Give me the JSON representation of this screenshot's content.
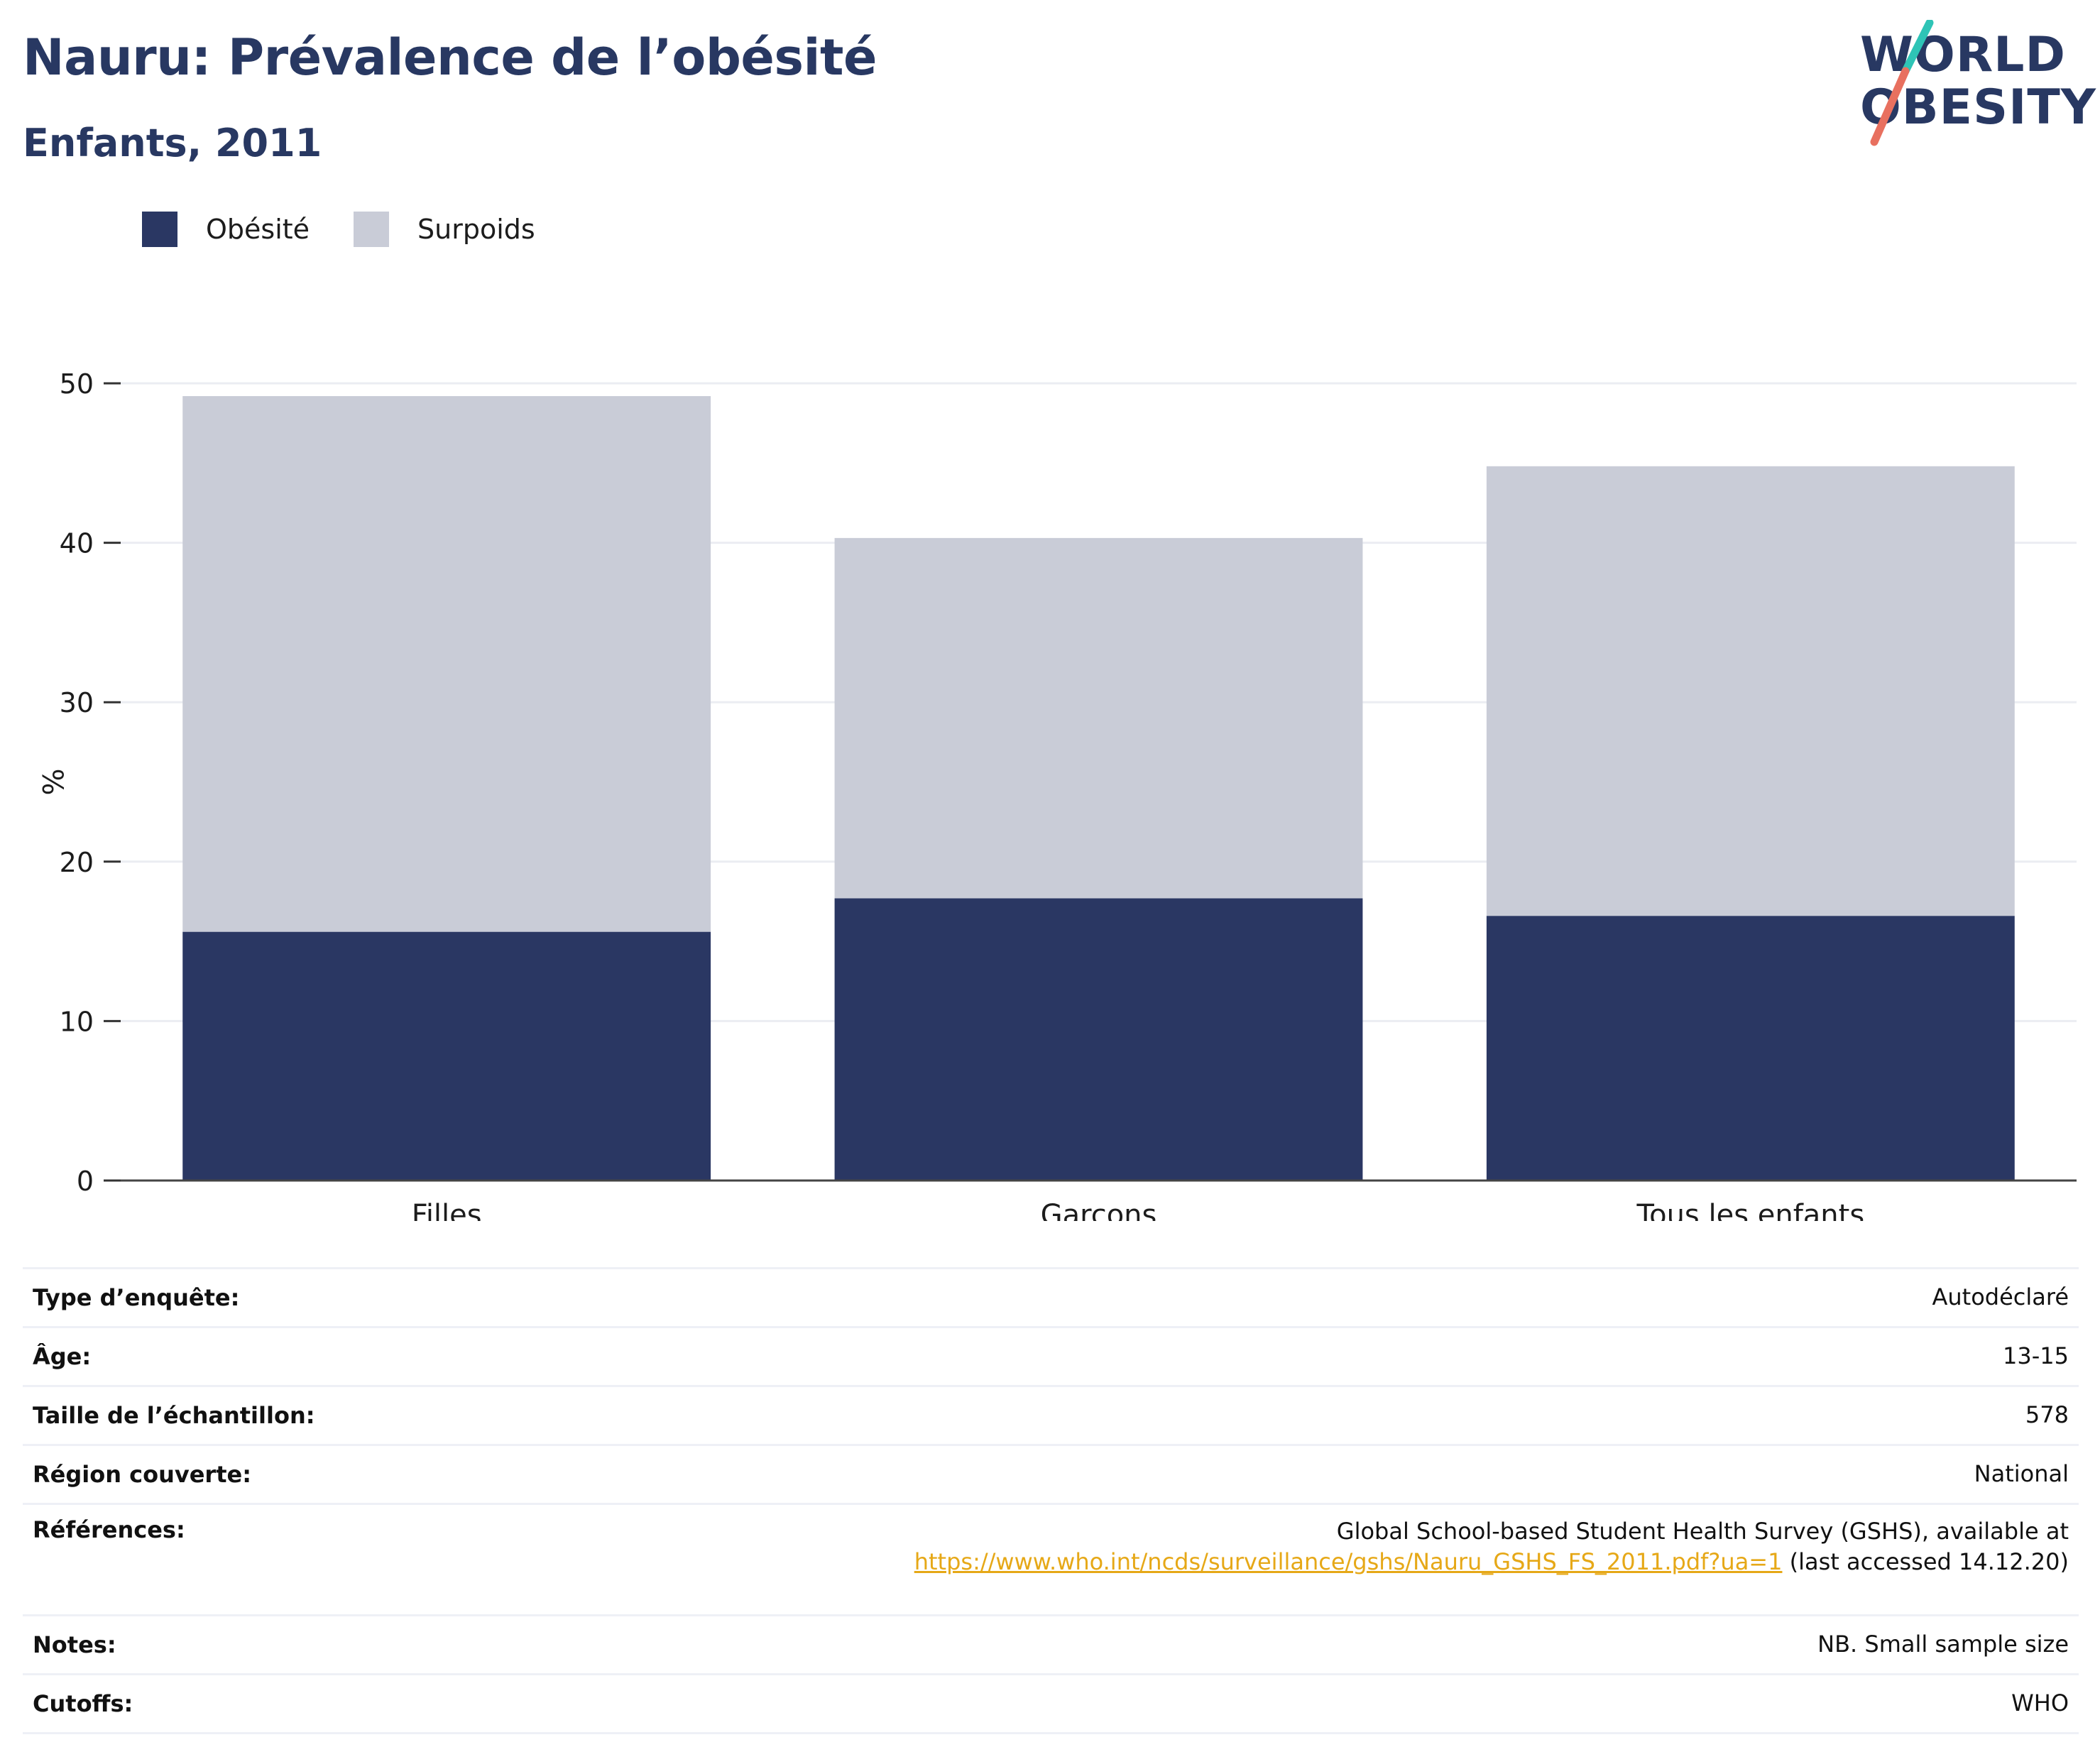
{
  "header": {
    "title": "Nauru: Prévalence de l’obésité",
    "subtitle": "Enfants, 2011"
  },
  "logo": {
    "line1": "WORLD",
    "line2": "OBESITY",
    "colors": {
      "text": "#283862",
      "slash_top": "#2ec4b6",
      "slash_bottom": "#e8705f"
    }
  },
  "chart_data": {
    "type": "bar",
    "stacked": true,
    "categories": [
      "Filles",
      "Garçons",
      "Tous les enfants"
    ],
    "series": [
      {
        "name": "Obésité",
        "color": "#2a3763",
        "values": [
          15.6,
          17.7,
          16.6
        ]
      },
      {
        "name": "Surpoids",
        "color": "#c9ccd7",
        "values": [
          33.6,
          22.6,
          28.2
        ]
      }
    ],
    "ylabel": "%",
    "ylim": [
      0,
      50
    ],
    "yticks": [
      0,
      10,
      20,
      30,
      40,
      50
    ],
    "grid": true,
    "legend": "top-left"
  },
  "info": {
    "survey_type": {
      "label": "Type d’enquête:",
      "value": "Autodéclaré"
    },
    "age": {
      "label": "Âge:",
      "value": "13-15"
    },
    "sample_size": {
      "label": "Taille de l’échantillon:",
      "value": "578"
    },
    "region": {
      "label": "Région couverte:",
      "value": "National"
    },
    "references": {
      "label": "Références:",
      "text": "Global School-based Student Health Survey (GSHS), available at",
      "link": "https://www.who.int/ncds/surveillance/gshs/Nauru_GSHS_FS_2011.pdf?ua=1",
      "suffix": "(last accessed 14.12.20)"
    },
    "notes": {
      "label": "Notes:",
      "value": "NB. Small sample size"
    },
    "cutoffs": {
      "label": "Cutoffs:",
      "value": "WHO"
    }
  }
}
